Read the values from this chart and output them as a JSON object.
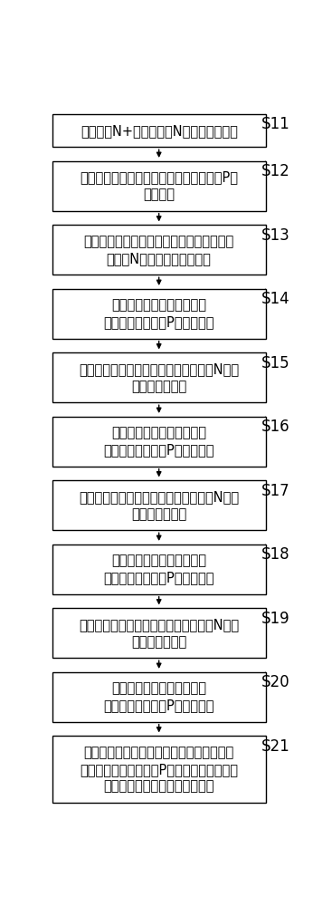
{
  "steps": [
    {
      "id": "S11",
      "lines": [
        "在晶圆的N+衬底上生长N型的缓冲外延层"
      ],
      "nlines": 1
    },
    {
      "id": "S12",
      "lines": [
        "通过光刻和离子注入在缓冲外延层内形成P型",
        "的掺杂区"
      ],
      "nlines": 2
    },
    {
      "id": "S13",
      "lines": [
        "去除缓冲外延层上的光刻胶并在缓冲外延层",
        "上生长N型的第一正常外延层"
      ],
      "nlines": 2
    },
    {
      "id": "S14",
      "lines": [
        "通过光刻和离子注入在第一",
        "正常外延层内形成P型的掺杂区"
      ],
      "nlines": 2
    },
    {
      "id": "S15",
      "lines": [
        "去除光刻胶并在第一正常外延层上生长N型的",
        "第二正常外延层"
      ],
      "nlines": 2
    },
    {
      "id": "S16",
      "lines": [
        "通过光刻和离子注入在第二",
        "正常外延层内形成P型的掺杂区"
      ],
      "nlines": 2
    },
    {
      "id": "S17",
      "lines": [
        "去除光刻胶并在第二正常外延层上生长N型的",
        "第三正常外延层"
      ],
      "nlines": 2
    },
    {
      "id": "S18",
      "lines": [
        "通过光刻和离子注入在第三",
        "正常外延层内形成P型的掺杂区"
      ],
      "nlines": 2
    },
    {
      "id": "S19",
      "lines": [
        "去除光刻胶并在第三正常外延层上生长N型的",
        "第四正常外延层"
      ],
      "nlines": 2
    },
    {
      "id": "S20",
      "lines": [
        "通过光刻和离子注入在第四",
        "正常外延层内形成P型的掺杂区"
      ],
      "nlines": 2
    },
    {
      "id": "S21",
      "lines": [
        "在第四正常外延层表面热生长场氧化层，并",
        "热推进使相邻外延层的P型的掺杂区在纵向上",
        "串在一起形成柱状的超级结结构"
      ],
      "nlines": 3
    }
  ],
  "bg_color": "#ffffff",
  "box_color": "#ffffff",
  "box_edge_color": "#000000",
  "arrow_color": "#000000",
  "label_color": "#000000",
  "text_color": "#000000",
  "font_size": 10.5,
  "label_font_size": 12
}
